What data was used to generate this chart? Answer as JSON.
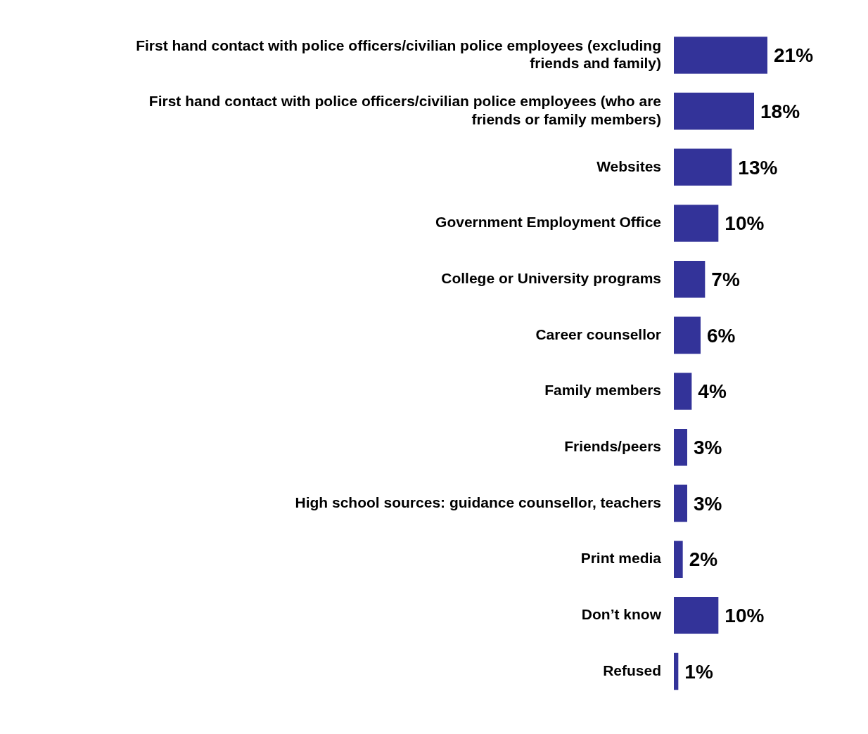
{
  "chart_data": {
    "type": "bar",
    "orientation": "horizontal",
    "categories": [
      "First hand contact with police officers/civilian police employees (excluding friends and family)",
      "First hand contact with police officers/civilian police employees (who are friends or family members)",
      "Websites",
      "Government Employment Office",
      "College or University programs",
      "Career counsellor",
      "Family members",
      "Friends/peers",
      "High school sources: guidance counsellor, teachers",
      "Print media",
      "Don’t know",
      "Refused"
    ],
    "values": [
      21,
      18,
      13,
      10,
      7,
      6,
      4,
      3,
      3,
      2,
      10,
      1
    ],
    "value_labels": [
      "21%",
      "18%",
      "13%",
      "10%",
      "7%",
      "6%",
      "4%",
      "3%",
      "3%",
      "2%",
      "10%",
      "1%"
    ],
    "color": "#333399",
    "grid": false,
    "legend": false
  }
}
